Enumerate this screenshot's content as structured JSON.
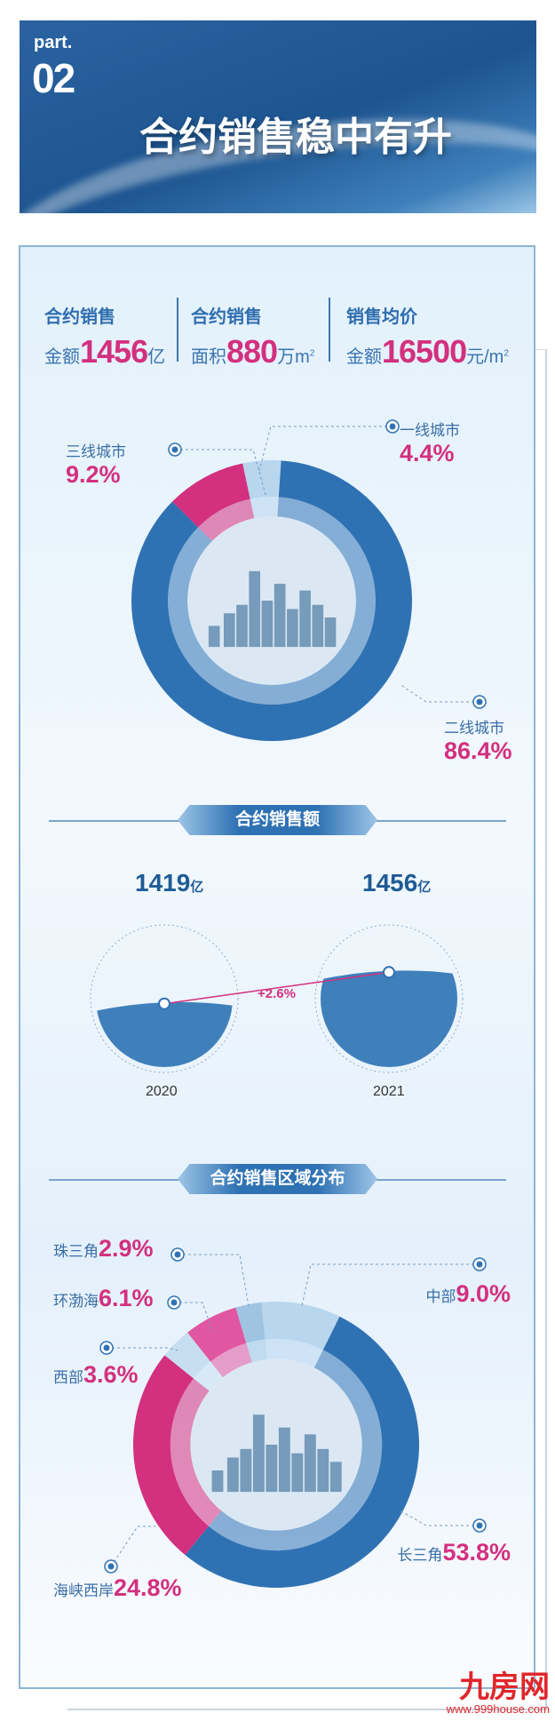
{
  "banner": {
    "part": "part.",
    "number": "02",
    "title": "合约销售稳中有升"
  },
  "stats": [
    {
      "title": "合约销售",
      "prefix": "金额",
      "value": "1456",
      "unit": "亿",
      "sup": ""
    },
    {
      "title": "合约销售",
      "prefix": "面积",
      "value": "880",
      "unit": "万m",
      "sup": "2"
    },
    {
      "title": "销售均价",
      "prefix": "金额",
      "value": "16500",
      "unit": "元/m",
      "sup": "2"
    }
  ],
  "sections": {
    "sales": "合约销售额",
    "region": "合约销售区域分布"
  },
  "colors": {
    "blue": "#2f72b4",
    "pink": "#d3307f",
    "light": "#a9cde8"
  },
  "chart_data": [
    {
      "type": "pie",
      "style": "donut",
      "slices": [
        {
          "label": "一线城市",
          "value": 4.4,
          "display": "4.4%",
          "color": "#b8d6ee"
        },
        {
          "label": "二线城市",
          "value": 86.4,
          "display": "86.4%",
          "color": "#2f72b4"
        },
        {
          "label": "三线城市",
          "value": 9.2,
          "display": "9.2%",
          "color": "#d3307f"
        }
      ]
    },
    {
      "type": "bar",
      "style": "filled-circles",
      "categories": [
        "2020",
        "2021"
      ],
      "values": [
        1419,
        1456
      ],
      "unit": "亿",
      "value_labels": [
        "1419",
        "1456"
      ],
      "change": "+2.6%",
      "fill_levels": [
        0.45,
        0.68
      ]
    },
    {
      "type": "pie",
      "style": "donut",
      "slices": [
        {
          "label": "中部",
          "value": 9.0,
          "display": "9.0%",
          "color": "#b8d6ee"
        },
        {
          "label": "长三角",
          "value": 53.8,
          "display": "53.8%",
          "color": "#2f72b4"
        },
        {
          "label": "海峡西岸",
          "value": 24.8,
          "display": "24.8%",
          "color": "#d3307f"
        },
        {
          "label": "西部",
          "value": 3.6,
          "display": "3.6%",
          "color": "#c6def0"
        },
        {
          "label": "环渤海",
          "value": 6.1,
          "display": "6.1%",
          "color": "#e056a0"
        },
        {
          "label": "珠三角",
          "value": 2.9,
          "display": "2.9%",
          "color": "#9fc4e2"
        }
      ]
    }
  ],
  "watermark": {
    "logo": "九房网",
    "url": "www.999house.com"
  }
}
